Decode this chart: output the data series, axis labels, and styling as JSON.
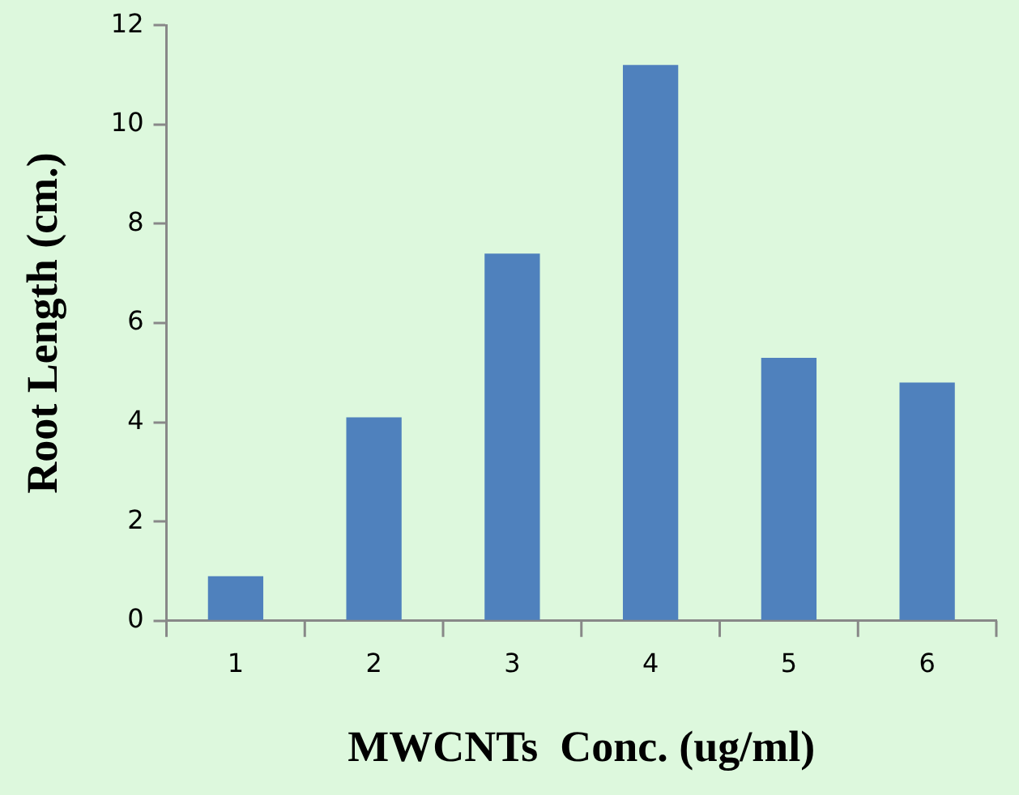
{
  "chart_data": {
    "type": "bar",
    "xlabel": "MWCNTs  Conc. (ug/ml)",
    "ylabel": "Root Length (cm.)",
    "categories": [
      "1",
      "2",
      "3",
      "4",
      "5",
      "6"
    ],
    "values": [
      0.9,
      4.1,
      7.4,
      11.2,
      5.3,
      4.8
    ],
    "color": "#4f81bd",
    "ylim": [
      0,
      12
    ],
    "yticks": [
      0,
      2,
      4,
      6,
      8,
      10,
      12
    ],
    "grid": false,
    "legend": false
  }
}
